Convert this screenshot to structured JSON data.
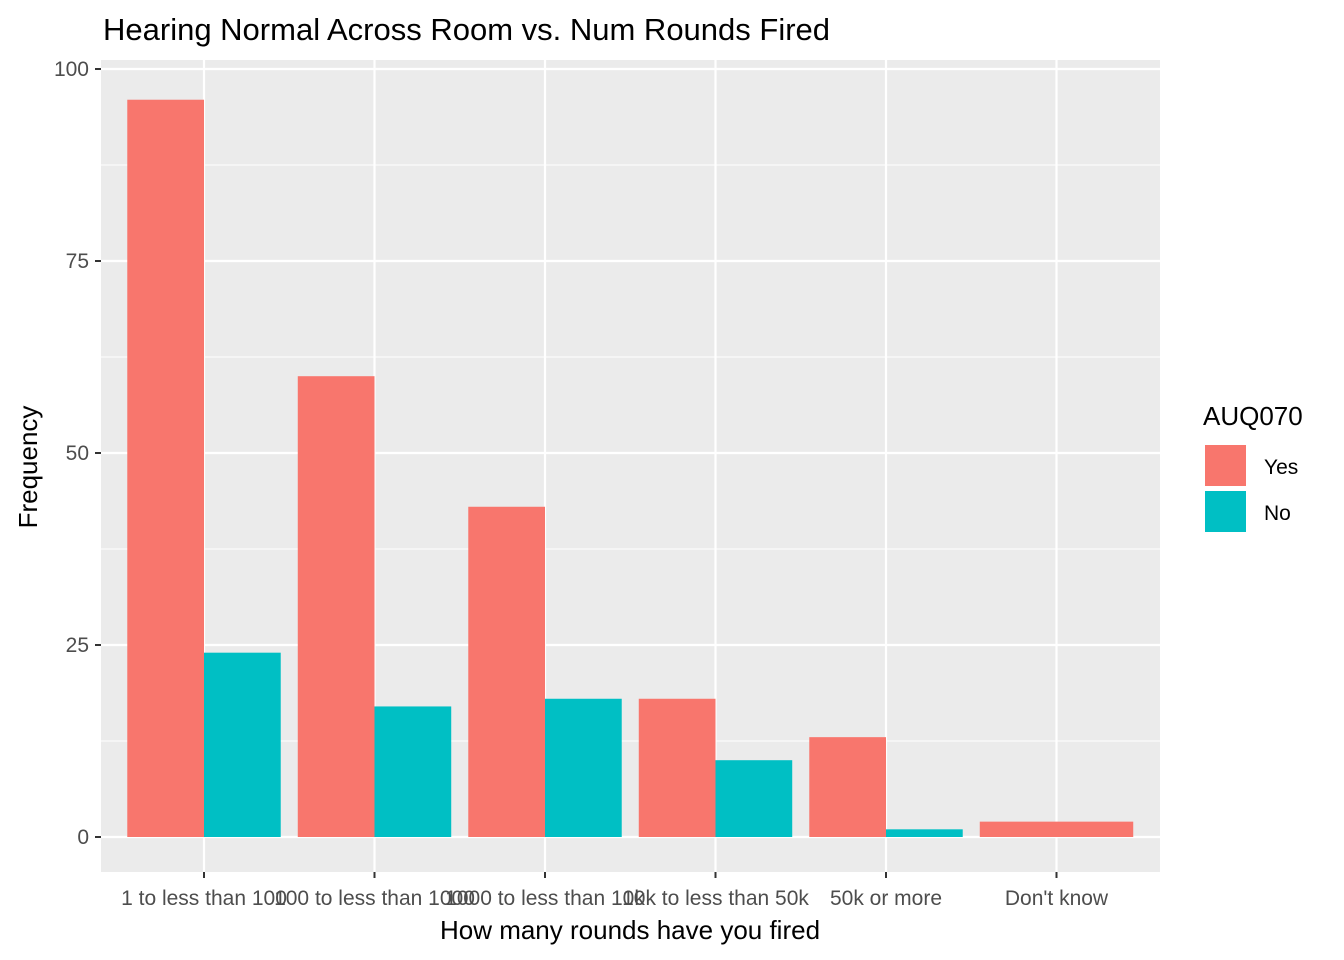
{
  "chart_data": {
    "type": "bar",
    "title": "Hearing Normal Across Room vs. Num Rounds Fired",
    "xlabel": "How many rounds have you fired",
    "ylabel": "Frequency",
    "categories": [
      "1 to less than 100",
      "100 to less than 1000",
      "1000 to less than 10k",
      "10k to less than 50k",
      "50k or more",
      "Don't know"
    ],
    "series": [
      {
        "name": "Yes",
        "color": "#F8766D",
        "values": [
          96,
          60,
          43,
          18,
          13,
          2
        ]
      },
      {
        "name": "No",
        "color": "#00BFC4",
        "values": [
          24,
          17,
          18,
          10,
          1,
          null
        ]
      }
    ],
    "ylim": [
      0,
      100
    ],
    "yticks": [
      0,
      25,
      50,
      75,
      100
    ],
    "grid": true,
    "legend": {
      "title": "AUQ070",
      "position": "right"
    }
  }
}
